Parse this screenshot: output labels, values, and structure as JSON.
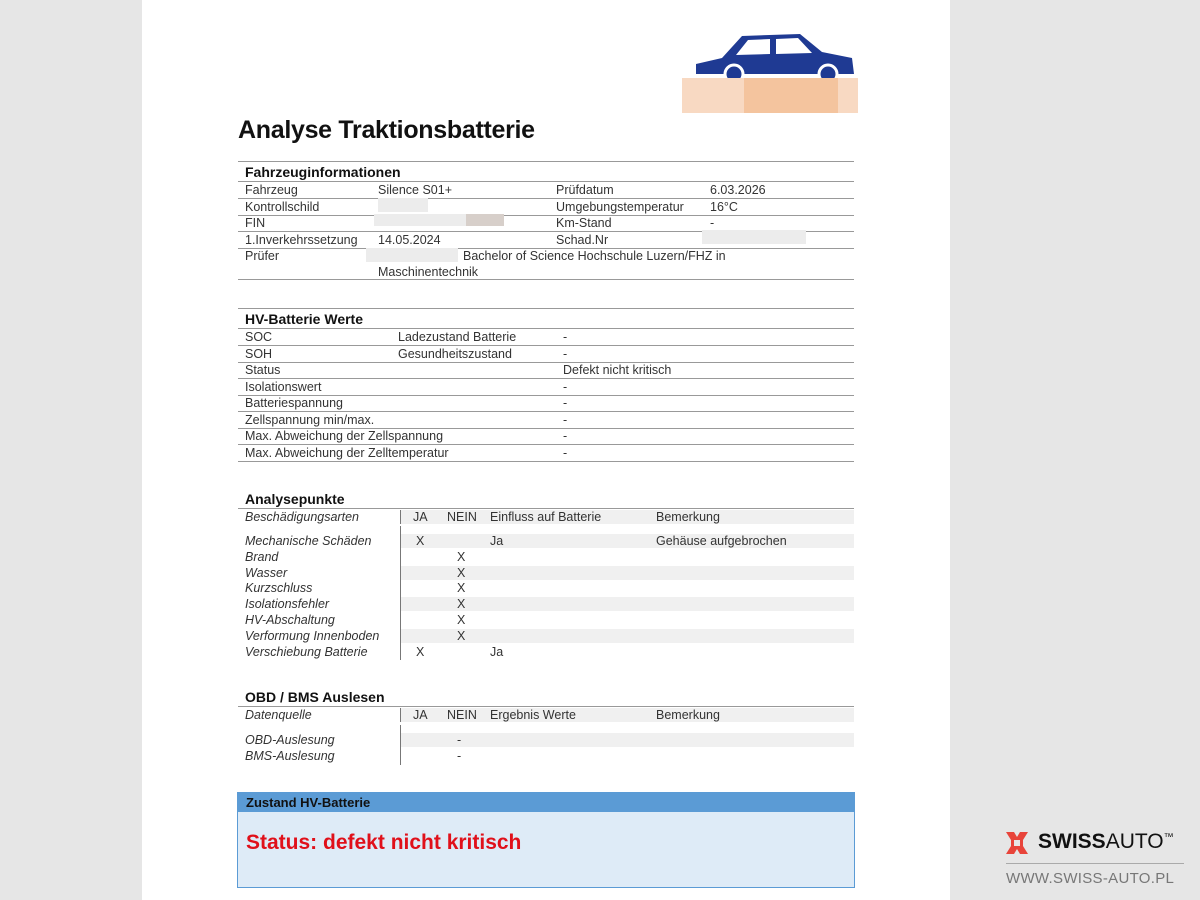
{
  "title": "Analyse Traktionsbatterie",
  "vehicle": {
    "heading": "Fahrzeuginformationen",
    "rows": [
      {
        "l1": "Fahrzeug",
        "v1": "Silence S01+",
        "l2": "Prüfdatum",
        "v2": "6.03.2026"
      },
      {
        "l1": "Kontrollschild",
        "v1": "",
        "l2": "Umgebungstemperatur",
        "v2": "16°C"
      },
      {
        "l1": "FIN",
        "v1": "",
        "l2": "Km-Stand",
        "v2": "-"
      },
      {
        "l1": "1.Inverkehrssetzung",
        "v1": "14.05.2024",
        "l2": "Schad.Nr",
        "v2": ""
      }
    ],
    "pruefer_label": "Prüfer",
    "pruefer_line1": "Bachelor of Science Hochschule Luzern/FHZ in",
    "pruefer_line2": "Maschinentechnik"
  },
  "hv": {
    "heading": "HV-Batterie Werte",
    "rows": [
      {
        "label": "SOC",
        "desc": "Ladezustand Batterie",
        "value": "-"
      },
      {
        "label": "SOH",
        "desc": "Gesundheitszustand",
        "value": "-"
      },
      {
        "label": "Status",
        "desc": "",
        "value": "Defekt nicht kritisch"
      },
      {
        "label": "Isolationswert",
        "desc": "",
        "value": "-"
      },
      {
        "label": "Batteriespannung",
        "desc": "",
        "value": "-"
      },
      {
        "label": "Zellspannung min/max.",
        "desc": "",
        "value": "-"
      },
      {
        "label": "Max. Abweichung der Zellspannung",
        "desc": "",
        "value": "-"
      },
      {
        "label": "Max. Abweichung der Zelltemperatur",
        "desc": "",
        "value": "-"
      }
    ]
  },
  "analysis": {
    "heading": "Analysepunkte",
    "header": {
      "c1": "Beschädigungsarten",
      "c2": "JA",
      "c3": "NEIN",
      "c4": "Einfluss auf Batterie",
      "c5": "Bemerkung"
    },
    "rows": [
      {
        "c1": "Mechanische Schäden",
        "c2": "X",
        "c3": "",
        "c4": "Ja",
        "c5": "Gehäuse aufgebrochen"
      },
      {
        "c1": "Brand",
        "c2": "",
        "c3": "X",
        "c4": "",
        "c5": ""
      },
      {
        "c1": "Wasser",
        "c2": "",
        "c3": "X",
        "c4": "",
        "c5": ""
      },
      {
        "c1": "Kurzschluss",
        "c2": "",
        "c3": "X",
        "c4": "",
        "c5": ""
      },
      {
        "c1": "Isolationsfehler",
        "c2": "",
        "c3": "X",
        "c4": "",
        "c5": ""
      },
      {
        "c1": "HV-Abschaltung",
        "c2": "",
        "c3": "X",
        "c4": "",
        "c5": ""
      },
      {
        "c1": "Verformung Innenboden",
        "c2": "",
        "c3": "X",
        "c4": "",
        "c5": ""
      },
      {
        "c1": "Verschiebung Batterie",
        "c2": "X",
        "c3": "",
        "c4": "Ja",
        "c5": ""
      }
    ]
  },
  "obd": {
    "heading": "OBD / BMS Auslesen",
    "header": {
      "c1": "Datenquelle",
      "c2": "JA",
      "c3": "NEIN",
      "c4": "Ergebnis Werte",
      "c5": "Bemerkung"
    },
    "rows": [
      {
        "c1": "OBD-Auslesung",
        "c3": "-"
      },
      {
        "c1": "BMS-Auslesung",
        "c3": "-"
      }
    ]
  },
  "zustand": {
    "heading": "Zustand HV-Batterie",
    "status": "Status: defekt nicht kritisch"
  },
  "brand": {
    "name_bold": "SWISS",
    "name_light": "AUTO",
    "tm": "™",
    "url": "WWW.SWISS-AUTO.PL"
  },
  "colors": {
    "accent_blue": "#5b9bd5",
    "box_blue": "#deebf7",
    "status_red": "#e0101a",
    "logo_red": "#e8443a",
    "car_blue": "#1f3a93"
  }
}
